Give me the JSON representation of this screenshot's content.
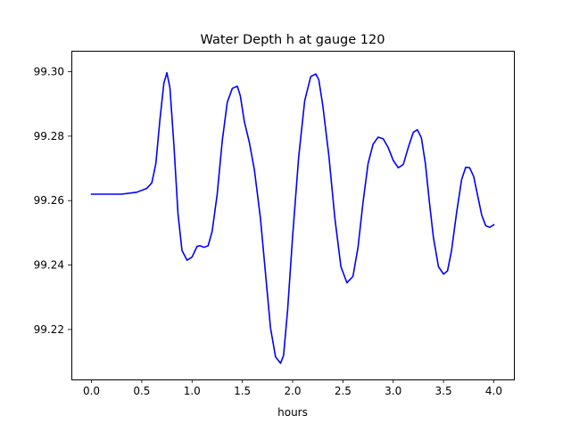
{
  "chart_data": {
    "type": "line",
    "title": "Water Depth h at gauge 120",
    "xlabel": "hours",
    "ylabel": "",
    "xlim": [
      -0.2,
      4.2
    ],
    "ylim": [
      99.2045,
      99.3065
    ],
    "x_ticks": [
      0.0,
      0.5,
      1.0,
      1.5,
      2.0,
      2.5,
      3.0,
      3.5,
      4.0
    ],
    "x_tick_labels": [
      "0.0",
      "0.5",
      "1.0",
      "1.5",
      "2.0",
      "2.5",
      "3.0",
      "3.5",
      "4.0"
    ],
    "y_ticks": [
      99.22,
      99.24,
      99.26,
      99.28,
      99.3
    ],
    "y_tick_labels": [
      "99.22",
      "99.24",
      "99.26",
      "99.28",
      "99.30"
    ],
    "grid": false,
    "series": [
      {
        "color": "#0000ff",
        "x": [
          0.0,
          0.3,
          0.45,
          0.55,
          0.6,
          0.64,
          0.68,
          0.72,
          0.75,
          0.78,
          0.82,
          0.86,
          0.9,
          0.95,
          1.0,
          1.05,
          1.08,
          1.12,
          1.16,
          1.2,
          1.25,
          1.3,
          1.35,
          1.4,
          1.45,
          1.48,
          1.52,
          1.57,
          1.62,
          1.68,
          1.73,
          1.78,
          1.83,
          1.88,
          1.91,
          1.95,
          2.0,
          2.06,
          2.12,
          2.18,
          2.23,
          2.26,
          2.3,
          2.36,
          2.42,
          2.48,
          2.54,
          2.6,
          2.65,
          2.7,
          2.75,
          2.8,
          2.85,
          2.9,
          2.95,
          3.0,
          3.05,
          3.1,
          3.15,
          3.2,
          3.24,
          3.28,
          3.32,
          3.36,
          3.4,
          3.45,
          3.5,
          3.54,
          3.58,
          3.63,
          3.68,
          3.72,
          3.76,
          3.8,
          3.84,
          3.88,
          3.92,
          3.96,
          4.0
        ],
        "y": [
          99.262,
          99.262,
          99.2626,
          99.2638,
          99.2655,
          99.2715,
          99.285,
          99.2965,
          99.2997,
          99.295,
          99.277,
          99.256,
          99.2445,
          99.2415,
          99.2425,
          99.2458,
          99.246,
          99.2455,
          99.246,
          99.2505,
          99.262,
          99.2785,
          99.2905,
          99.2948,
          99.2955,
          99.2925,
          99.2845,
          99.278,
          99.2695,
          99.2545,
          99.2375,
          99.2205,
          99.2115,
          99.2095,
          99.212,
          99.226,
          99.249,
          99.2735,
          99.291,
          99.2985,
          99.2993,
          99.2975,
          99.2895,
          99.274,
          99.2545,
          99.2395,
          99.2345,
          99.2365,
          99.2455,
          99.2595,
          99.2715,
          99.2775,
          99.2797,
          99.2792,
          99.2765,
          99.2725,
          99.2702,
          99.2712,
          99.2765,
          99.2812,
          99.282,
          99.2795,
          99.2715,
          99.2595,
          99.2485,
          99.2395,
          99.2372,
          99.2382,
          99.2445,
          99.2562,
          99.2665,
          99.2703,
          99.2702,
          99.2675,
          99.2615,
          99.2555,
          99.2522,
          99.2517,
          99.2525
        ]
      }
    ]
  }
}
